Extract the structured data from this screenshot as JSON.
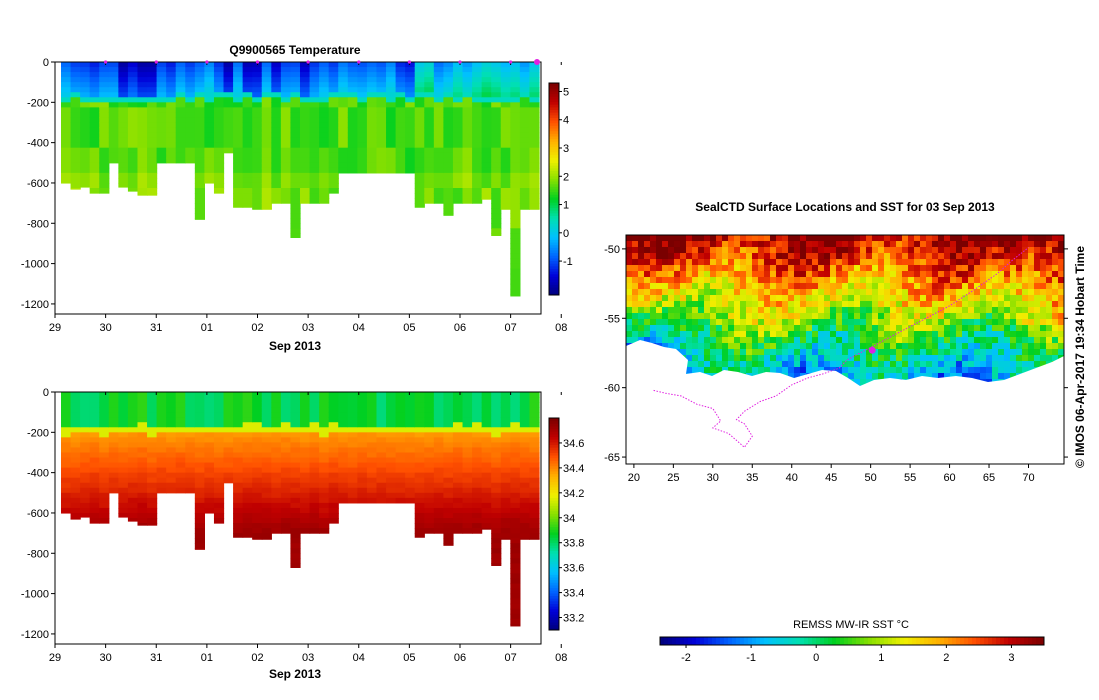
{
  "colors": {
    "track": "#e020e0",
    "frame": "#000000",
    "background": "#ffffff"
  },
  "chart_data": [
    {
      "id": "temperature-section",
      "type": "heatmap",
      "title": "Q9900565  Temperature",
      "xlabel": "Sep 2013",
      "x_tick_labels": [
        "29",
        "30",
        "31",
        "01",
        "02",
        "03",
        "04",
        "05",
        "06",
        "07",
        "08"
      ],
      "xlim_days": [
        0,
        9.6
      ],
      "ylim": [
        -1250,
        0
      ],
      "y_ticks": [
        0,
        -200,
        -400,
        -600,
        -800,
        -1000,
        -1200
      ],
      "colorbar": {
        "min": -2.2,
        "max": 5.3,
        "ticks": [
          5,
          4,
          3,
          2,
          1,
          0,
          -1
        ],
        "palette": [
          "#00007a",
          "#0000d8",
          "#0064ff",
          "#00c0ff",
          "#00e0b0",
          "#00d020",
          "#88e000",
          "#f0f000",
          "#ffb000",
          "#ff5000",
          "#c00000",
          "#7a0000"
        ]
      },
      "surface_value": -1.3,
      "layer_value": 1.6,
      "profile_max_depth": [
        -600,
        -630,
        -620,
        -650,
        -650,
        -500,
        -620,
        -640,
        -660,
        -660,
        -500,
        -500,
        -500,
        -500,
        -780,
        -600,
        -650,
        -450,
        -720,
        -720,
        -730,
        -730,
        -700,
        -700,
        -870,
        -700,
        -700,
        -700,
        -650,
        -550,
        -550,
        -550,
        -550,
        -550,
        -550,
        -550,
        -550,
        -720,
        -700,
        -700,
        -760,
        -700,
        -700,
        -700,
        -680,
        -860,
        -730,
        -1160,
        -730,
        -730
      ]
    },
    {
      "id": "salinity-section",
      "type": "heatmap",
      "title": "",
      "xlabel": "Sep 2013",
      "x_tick_labels": [
        "29",
        "30",
        "31",
        "01",
        "02",
        "03",
        "04",
        "05",
        "06",
        "07",
        "08"
      ],
      "xlim_days": [
        0,
        9.6
      ],
      "ylim": [
        -1250,
        0
      ],
      "y_ticks": [
        0,
        -200,
        -400,
        -600,
        -800,
        -1000,
        -1200
      ],
      "colorbar": {
        "min": 33.1,
        "max": 34.8,
        "ticks": [
          34.6,
          34.4,
          34.2,
          34,
          33.8,
          33.6,
          33.4,
          33.2
        ],
        "palette": [
          "#00007a",
          "#0000d8",
          "#0064ff",
          "#00c0ff",
          "#00e0b0",
          "#00d020",
          "#88e000",
          "#f0f000",
          "#ffb000",
          "#ff5000",
          "#c00000",
          "#7a0000"
        ]
      },
      "surface_value": 33.85,
      "deep_value": 34.72,
      "profile_max_depth": [
        -600,
        -630,
        -620,
        -650,
        -650,
        -500,
        -620,
        -640,
        -660,
        -660,
        -500,
        -500,
        -500,
        -500,
        -780,
        -600,
        -650,
        -450,
        -720,
        -720,
        -730,
        -730,
        -700,
        -700,
        -870,
        -700,
        -700,
        -700,
        -650,
        -550,
        -550,
        -550,
        -550,
        -550,
        -550,
        -550,
        -550,
        -720,
        -700,
        -700,
        -760,
        -700,
        -700,
        -700,
        -680,
        -860,
        -730,
        -1160,
        -730,
        -730
      ]
    },
    {
      "id": "sst-map",
      "type": "heatmap",
      "title": "SealCTD Surface Locations and SST for 03 Sep 2013",
      "x_tick_labels": [
        "20",
        "25",
        "30",
        "35",
        "40",
        "45",
        "50",
        "55",
        "60",
        "65",
        "70"
      ],
      "y_tick_labels": [
        "-50",
        "-55",
        "-60",
        "-65"
      ],
      "xlim": [
        19,
        74.5
      ],
      "ylim": [
        -65.5,
        -49
      ],
      "colorbar": {
        "label": "REMSS MW-IR SST °C",
        "min": -2.4,
        "max": 3.5,
        "ticks": [
          "-2",
          "-1",
          "0",
          "1",
          "2",
          "3"
        ],
        "tick_values": [
          -2,
          -1,
          0,
          1,
          2,
          3
        ],
        "palette": [
          "#00007a",
          "#0000d8",
          "#0064ff",
          "#00c0ff",
          "#00e0b0",
          "#00d020",
          "#88e000",
          "#f0f000",
          "#ffb000",
          "#ff5000",
          "#c00000",
          "#7a0000"
        ]
      },
      "track_lon": [
        22.5,
        24,
        26,
        28,
        30,
        31,
        30,
        32,
        34,
        35,
        34,
        33,
        34,
        36,
        38,
        40,
        42,
        44,
        46,
        47,
        49,
        51,
        53,
        55,
        57,
        60,
        63,
        66,
        68,
        70
      ],
      "track_lat": [
        -60.2,
        -60.4,
        -60.6,
        -61.2,
        -61.5,
        -62.4,
        -62.9,
        -63.3,
        -64.3,
        -63.5,
        -62.6,
        -62.3,
        -61.7,
        -61.0,
        -60.6,
        -59.8,
        -59.3,
        -59.0,
        -58.6,
        -58.0,
        -57.4,
        -56.8,
        -56.2,
        -55.6,
        -55.0,
        -54.1,
        -53.0,
        -51.8,
        -50.8,
        -49.9
      ],
      "current_position": {
        "lon": 50.2,
        "lat": -57.3
      }
    }
  ],
  "side_caption": "©  IMOS 06-Apr-2017 19:34 Hobart Time"
}
